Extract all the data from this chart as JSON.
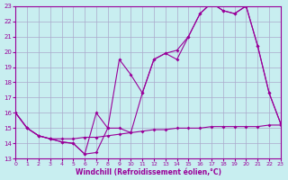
{
  "xlabel": "Windchill (Refroidissement éolien,°C)",
  "bg_color": "#c8eef0",
  "grid_color": "#aaaacc",
  "line_color": "#990099",
  "xlim": [
    0,
    23
  ],
  "ylim": [
    13,
    23
  ],
  "xticks": [
    0,
    1,
    2,
    3,
    4,
    5,
    6,
    7,
    8,
    9,
    10,
    11,
    12,
    13,
    14,
    15,
    16,
    17,
    18,
    19,
    20,
    21,
    22,
    23
  ],
  "yticks": [
    13,
    14,
    15,
    16,
    17,
    18,
    19,
    20,
    21,
    22,
    23
  ],
  "line1_x": [
    0,
    1,
    2,
    3,
    4,
    5,
    6,
    7,
    8,
    9,
    10,
    11,
    12,
    13,
    14,
    15,
    16,
    17,
    18,
    19,
    20,
    21,
    22,
    23
  ],
  "line1_y": [
    16,
    15,
    14.5,
    14.3,
    14.1,
    14.0,
    13.3,
    16.0,
    15.0,
    19.5,
    18.5,
    17.3,
    19.5,
    19.9,
    19.5,
    21.0,
    22.5,
    23.2,
    22.7,
    22.5,
    23.0,
    20.4,
    17.3,
    15.3
  ],
  "line2_x": [
    0,
    1,
    2,
    3,
    4,
    5,
    6,
    7,
    8,
    9,
    10,
    11,
    12,
    13,
    14,
    15,
    16,
    17,
    18,
    19,
    20,
    21,
    22,
    23
  ],
  "line2_y": [
    16,
    15,
    14.5,
    14.3,
    14.1,
    14.0,
    13.3,
    13.4,
    15.0,
    15.0,
    14.7,
    17.3,
    19.5,
    19.9,
    20.1,
    21.0,
    22.5,
    23.2,
    22.7,
    22.5,
    23.0,
    20.4,
    17.3,
    15.3
  ],
  "line3_x": [
    0,
    1,
    2,
    3,
    4,
    5,
    6,
    7,
    8,
    9,
    10,
    11,
    12,
    13,
    14,
    15,
    16,
    17,
    18,
    19,
    20,
    21,
    22,
    23
  ],
  "line3_y": [
    16,
    15,
    14.5,
    14.3,
    14.3,
    14.3,
    14.4,
    14.4,
    14.5,
    14.6,
    14.7,
    14.8,
    14.9,
    14.9,
    15.0,
    15.0,
    15.0,
    15.1,
    15.1,
    15.1,
    15.1,
    15.1,
    15.2,
    15.2
  ]
}
